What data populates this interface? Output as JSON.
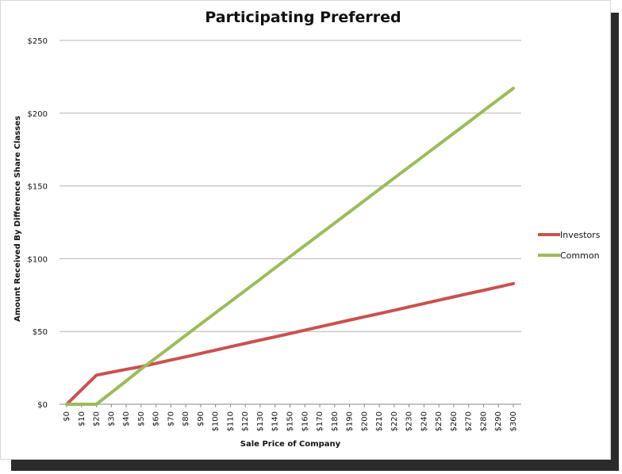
{
  "chart_data": {
    "type": "line",
    "title": "Participating Preferred",
    "xlabel": "Sale Price of Company",
    "ylabel": "Amount Received By Difference Share Classes",
    "x": [
      0,
      10,
      20,
      30,
      40,
      50,
      60,
      70,
      80,
      90,
      100,
      110,
      120,
      130,
      140,
      150,
      160,
      170,
      180,
      190,
      200,
      210,
      220,
      230,
      240,
      250,
      260,
      270,
      280,
      290,
      300
    ],
    "x_tick_labels": [
      "$0",
      "$10",
      "$20",
      "$30",
      "$40",
      "$50",
      "$60",
      "$70",
      "$80",
      "$90",
      "$100",
      "$110",
      "$120",
      "$130",
      "$140",
      "$150",
      "$160",
      "$170",
      "$180",
      "$190",
      "$200",
      "$210",
      "$220",
      "$230",
      "$240",
      "$250",
      "$260",
      "$270",
      "$280",
      "$290",
      "$300"
    ],
    "y_tick_labels": [
      "$0",
      "$50",
      "$100",
      "$150",
      "$200",
      "$250"
    ],
    "y_ticks": [
      0,
      50,
      100,
      150,
      200,
      250
    ],
    "ylim": [
      0,
      250
    ],
    "grid": "horizontal",
    "legend_position": "right",
    "series": [
      {
        "name": "Investors",
        "color": "#c9524f",
        "values": [
          0,
          10,
          20,
          22,
          24,
          25.8,
          28.1,
          30.4,
          32.6,
          34.9,
          37.2,
          39.5,
          41.8,
          44.1,
          46.3,
          48.6,
          50.9,
          53.2,
          55.5,
          57.8,
          60.1,
          62.3,
          64.6,
          66.9,
          69.2,
          71.5,
          73.8,
          76.1,
          78.3,
          80.6,
          82.9
        ]
      },
      {
        "name": "Common",
        "color": "#9bbb59",
        "values": [
          0,
          0,
          0,
          8,
          16,
          24.2,
          31.9,
          39.6,
          47.4,
          55.1,
          62.8,
          70.5,
          78.2,
          85.9,
          93.7,
          101.4,
          109.1,
          116.8,
          124.5,
          132.2,
          139.9,
          147.7,
          155.4,
          163.1,
          170.8,
          178.5,
          186.2,
          193.9,
          201.7,
          209.4,
          217.1
        ]
      }
    ]
  }
}
